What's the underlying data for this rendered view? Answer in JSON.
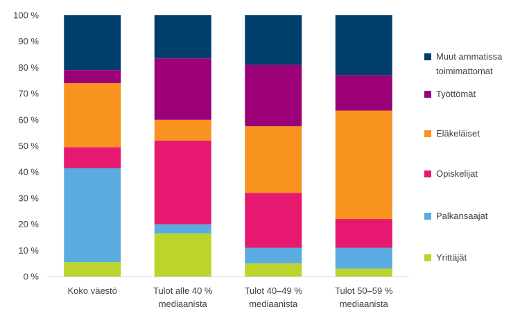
{
  "chart_data": {
    "type": "bar",
    "stacked": true,
    "title": "",
    "xlabel": "",
    "ylabel": "",
    "ylim": [
      0,
      100
    ],
    "y_ticks": [
      "0 %",
      "10 %",
      "20 %",
      "30 %",
      "40 %",
      "50 %",
      "60 %",
      "70 %",
      "80 %",
      "90 %",
      "100 %"
    ],
    "categories": [
      [
        "Koko väestö"
      ],
      [
        "Tulot alle 40 %",
        "mediaanista"
      ],
      [
        "Tulot 40–49 %",
        "mediaanista"
      ],
      [
        "Tulot 50–59 %",
        "mediaanista"
      ]
    ],
    "series": [
      {
        "name": "Yrittäjät",
        "color": "#bcd42c",
        "values": [
          5.5,
          16.5,
          5,
          3
        ]
      },
      {
        "name": "Palkansaajat",
        "color": "#5aace0",
        "values": [
          36,
          3.5,
          6,
          8
        ]
      },
      {
        "name": "Opiskelijat",
        "color": "#e6186f",
        "values": [
          8,
          32,
          21,
          11
        ]
      },
      {
        "name": "Eläkeläiset",
        "color": "#f7931e",
        "values": [
          24.5,
          8,
          25.5,
          41.5
        ]
      },
      {
        "name": "Työttömät",
        "color": "#9b0078",
        "values": [
          5,
          23.5,
          23.5,
          13.5
        ]
      },
      {
        "name": "Muut ammatissa toimimattomat",
        "color": "#003f6b",
        "values": [
          21,
          16.5,
          19,
          23
        ]
      }
    ],
    "legend": {
      "position": "right",
      "order_top_to_bottom": [
        {
          "lines": [
            "Muut ammatissa",
            "toimimattomat"
          ],
          "color": "#003f6b"
        },
        {
          "lines": [
            "Työttömät"
          ],
          "color": "#9b0078"
        },
        {
          "lines": [
            "Eläkeläiset"
          ],
          "color": "#f7931e"
        },
        {
          "lines": [
            "Opiskelijat"
          ],
          "color": "#e6186f"
        },
        {
          "lines": [
            "Palkansaajat"
          ],
          "color": "#5aace0"
        },
        {
          "lines": [
            "Yrittäjät"
          ],
          "color": "#bcd42c"
        }
      ]
    },
    "grid": false,
    "axis_color": "#d9d9d9"
  }
}
